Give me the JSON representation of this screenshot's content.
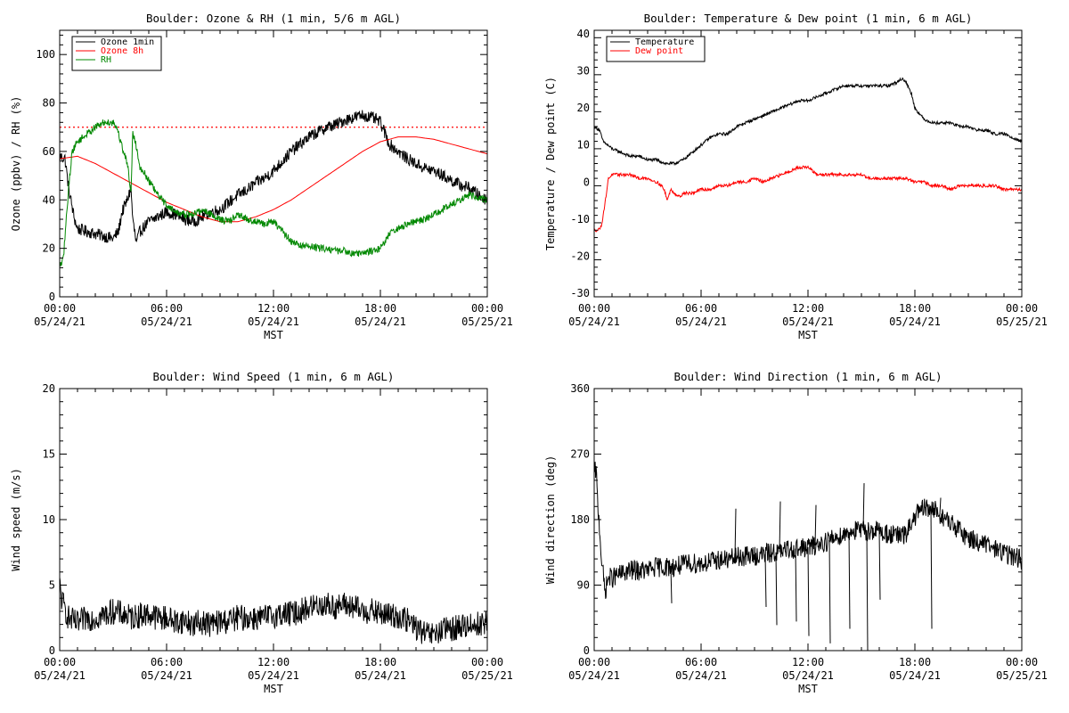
{
  "x_axis": {
    "tick_times": [
      "00:00",
      "06:00",
      "12:00",
      "18:00",
      "00:00"
    ],
    "tick_dates": [
      "05/24/21",
      "05/24/21",
      "05/24/21",
      "05/24/21",
      "05/25/21"
    ],
    "label": "MST"
  },
  "chart_data": [
    {
      "type": "line",
      "title": "Boulder: Ozone & RH (1 min, 5/6 m AGL)",
      "xlabel": "MST",
      "ylabel": "Ozone (ppbv) / RH (%)",
      "xlim": [
        0,
        24
      ],
      "ylim": [
        0,
        110
      ],
      "yticks": [
        0,
        20,
        40,
        60,
        80,
        100
      ],
      "legend_position": "top-left",
      "reference_line": {
        "value": 70,
        "style": "dotted",
        "color": "#ff0000"
      },
      "series": [
        {
          "name": "Ozone 1min",
          "color": "#000000",
          "noise": 2.5,
          "x": [
            0,
            0.3,
            0.5,
            0.8,
            1.0,
            1.5,
            2.0,
            2.5,
            3.0,
            3.3,
            3.5,
            3.8,
            4.0,
            4.1,
            4.3,
            4.5,
            5.0,
            5.5,
            6.0,
            6.5,
            7.0,
            7.5,
            8.0,
            8.5,
            9.0,
            9.5,
            10.0,
            10.5,
            11.0,
            11.5,
            12.0,
            12.5,
            13.0,
            13.5,
            14.0,
            14.5,
            15.0,
            15.5,
            16.0,
            16.5,
            17.0,
            17.5,
            17.8,
            18.0,
            18.5,
            19.0,
            19.5,
            20.0,
            20.5,
            21.0,
            21.5,
            22.0,
            22.5,
            23.0,
            23.5,
            24.0
          ],
          "y": [
            58,
            57,
            45,
            33,
            28,
            27,
            26,
            25,
            24,
            27,
            35,
            40,
            45,
            32,
            22,
            27,
            31,
            33,
            35,
            34,
            32,
            31,
            33,
            35,
            36,
            39,
            42,
            44,
            47,
            49,
            52,
            56,
            60,
            63,
            66,
            68,
            70,
            71,
            73,
            74,
            75,
            74,
            73,
            72,
            63,
            60,
            57,
            55,
            53,
            52,
            50,
            48,
            46,
            45,
            42,
            40
          ]
        },
        {
          "name": "Ozone 8h",
          "color": "#ff0000",
          "noise": 0,
          "x": [
            0,
            1,
            2,
            3,
            4,
            5,
            6,
            7,
            8,
            9,
            10,
            11,
            12,
            13,
            14,
            15,
            16,
            17,
            18,
            19,
            20,
            21,
            22,
            23,
            24
          ],
          "y": [
            57,
            58,
            55,
            51,
            47,
            43,
            39,
            36,
            33,
            31,
            31,
            33,
            36,
            40,
            45,
            50,
            55,
            60,
            64,
            66,
            66,
            65,
            63,
            61,
            59
          ]
        },
        {
          "name": "RH",
          "color": "#008800",
          "noise": 1.5,
          "x": [
            0,
            0.2,
            0.3,
            0.5,
            0.7,
            1.0,
            1.5,
            2.0,
            2.5,
            3.0,
            3.2,
            3.5,
            3.8,
            4.0,
            4.1,
            4.3,
            4.5,
            5.0,
            5.5,
            6.0,
            6.5,
            7.0,
            7.5,
            8.0,
            8.5,
            9.0,
            9.5,
            10.0,
            10.5,
            11.0,
            11.5,
            12.0,
            12.5,
            13.0,
            13.5,
            14.0,
            14.5,
            15.0,
            15.5,
            16.0,
            16.5,
            17.0,
            17.5,
            18.0,
            18.5,
            19.0,
            19.5,
            20.0,
            20.5,
            21.0,
            21.5,
            22.0,
            22.5,
            23.0,
            23.5,
            24.0
          ],
          "y": [
            13,
            15,
            25,
            45,
            60,
            64,
            67,
            70,
            72,
            72,
            70,
            62,
            55,
            43,
            68,
            62,
            54,
            48,
            42,
            38,
            35,
            34,
            34,
            36,
            34,
            32,
            31,
            34,
            32,
            31,
            30,
            31,
            27,
            23,
            21,
            21,
            20,
            20,
            19,
            19,
            18,
            18,
            19,
            20,
            26,
            28,
            30,
            31,
            32,
            34,
            36,
            38,
            40,
            42,
            41,
            40
          ]
        }
      ]
    },
    {
      "type": "line",
      "title": "Boulder: Temperature & Dew point (1 min, 6 m AGL)",
      "xlabel": "MST",
      "ylabel": "Temperature / Dew point (C)",
      "xlim": [
        0,
        24
      ],
      "ylim": [
        -31,
        41
      ],
      "yticks": [
        -30,
        -20,
        -10,
        0,
        10,
        20,
        30,
        40
      ],
      "legend_position": "top-left",
      "series": [
        {
          "name": "Temperature",
          "color": "#000000",
          "noise": 0.4,
          "x": [
            0,
            0.3,
            0.5,
            1.0,
            1.5,
            2.0,
            2.5,
            3.0,
            3.5,
            4.0,
            4.5,
            5.0,
            5.5,
            6.0,
            6.5,
            7.0,
            7.5,
            8.0,
            8.5,
            9.0,
            9.5,
            10.0,
            10.5,
            11.0,
            11.5,
            12.0,
            12.5,
            13.0,
            13.5,
            14.0,
            14.5,
            15.0,
            15.5,
            16.0,
            16.5,
            17.0,
            17.3,
            17.5,
            17.8,
            18.0,
            18.5,
            19.0,
            19.5,
            20.0,
            20.5,
            21.0,
            21.5,
            22.0,
            22.5,
            23.0,
            23.5,
            24.0
          ],
          "y": [
            15,
            14,
            11,
            9,
            8,
            7,
            7,
            6,
            6,
            5,
            5,
            6,
            8,
            10,
            12,
            13,
            13,
            15,
            16,
            17,
            18,
            19,
            20,
            21,
            22,
            22,
            23,
            24,
            25,
            26,
            26,
            26,
            26,
            26,
            26,
            27,
            28,
            27,
            24,
            20,
            17,
            16,
            16,
            16,
            15,
            15,
            14,
            14,
            13,
            13,
            12,
            11
          ]
        },
        {
          "name": "Dew point",
          "color": "#ff0000",
          "noise": 0.4,
          "x": [
            0,
            0.2,
            0.4,
            0.6,
            0.8,
            1.0,
            1.5,
            2.0,
            2.5,
            3.0,
            3.5,
            3.8,
            4.0,
            4.1,
            4.3,
            4.5,
            4.8,
            5.0,
            5.5,
            6.0,
            6.5,
            7.0,
            7.5,
            8.0,
            8.5,
            9.0,
            9.5,
            10.0,
            10.5,
            11.0,
            11.5,
            12.0,
            12.5,
            13.0,
            13.5,
            14.0,
            14.5,
            15.0,
            15.5,
            16.0,
            16.5,
            17.0,
            17.5,
            18.0,
            18.5,
            19.0,
            19.5,
            20.0,
            20.5,
            21.0,
            21.5,
            22.0,
            22.5,
            23.0,
            23.5,
            24.0
          ],
          "y": [
            -13,
            -13,
            -12,
            -6,
            1,
            2,
            2,
            2,
            1,
            1,
            0,
            -1,
            -3,
            -5,
            -2,
            -3,
            -4,
            -3,
            -3,
            -2,
            -2,
            -1,
            -1,
            0,
            0,
            1,
            0,
            1,
            2,
            3,
            4,
            4,
            2,
            2,
            2,
            2,
            2,
            2,
            1,
            1,
            1,
            1,
            1,
            0,
            0,
            -1,
            -1,
            -2,
            -1,
            -1,
            -1,
            -1,
            -1,
            -2,
            -2,
            -2
          ]
        }
      ]
    },
    {
      "type": "line",
      "title": "Boulder: Wind Speed (1 min, 6 m AGL)",
      "xlabel": "MST",
      "ylabel": "Wind speed (m/s)",
      "xlim": [
        0,
        24
      ],
      "ylim": [
        0,
        20
      ],
      "yticks": [
        0,
        5,
        10,
        15,
        20
      ],
      "series": [
        {
          "name": "",
          "color": "#000000",
          "noise": 1.0,
          "x": [
            0,
            0.1,
            0.2,
            0.5,
            1.0,
            1.5,
            2.0,
            2.5,
            3.0,
            3.5,
            4.0,
            4.5,
            5.0,
            5.5,
            6.0,
            6.5,
            7.0,
            7.5,
            8.0,
            8.5,
            9.0,
            9.5,
            10.0,
            10.5,
            11.0,
            11.5,
            12.0,
            12.5,
            13.0,
            13.5,
            14.0,
            14.5,
            15.0,
            15.5,
            16.0,
            16.5,
            17.0,
            17.5,
            18.0,
            18.5,
            19.0,
            19.5,
            20.0,
            20.5,
            21.0,
            21.5,
            22.0,
            22.5,
            23.0,
            23.5,
            24.0
          ],
          "y": [
            5.0,
            4.0,
            3.5,
            2.5,
            2.0,
            2.5,
            2.5,
            2.7,
            3.0,
            2.8,
            2.5,
            2.7,
            2.8,
            2.5,
            2.5,
            2.2,
            2.3,
            2.0,
            2.2,
            2.0,
            2.2,
            2.3,
            2.5,
            2.5,
            2.5,
            2.5,
            2.7,
            2.8,
            2.8,
            3.0,
            3.3,
            3.5,
            3.5,
            3.3,
            3.5,
            3.3,
            3.0,
            3.0,
            2.8,
            2.7,
            2.6,
            2.3,
            1.8,
            1.2,
            1.2,
            1.5,
            1.7,
            1.8,
            2.0,
            2.0,
            2.2
          ]
        }
      ]
    },
    {
      "type": "line",
      "title": "Boulder: Wind Direction (1 min, 6 m AGL)",
      "xlabel": "MST",
      "ylabel": "Wind direction (deg)",
      "xlim": [
        0,
        24
      ],
      "ylim": [
        0,
        360
      ],
      "yticks": [
        0,
        90,
        180,
        270,
        360
      ],
      "series": [
        {
          "name": "",
          "color": "#000000",
          "noise": 14,
          "x": [
            0,
            0.1,
            0.2,
            0.3,
            0.4,
            0.6,
            0.8,
            1.0,
            1.5,
            2.0,
            2.5,
            3.0,
            3.5,
            4.0,
            4.5,
            5.0,
            5.5,
            6.0,
            6.5,
            7.0,
            7.5,
            8.0,
            8.5,
            9.0,
            9.5,
            10.0,
            10.5,
            11.0,
            11.5,
            12.0,
            12.5,
            13.0,
            13.5,
            14.0,
            14.5,
            15.0,
            15.5,
            16.0,
            16.5,
            17.0,
            17.5,
            18.0,
            18.5,
            19.0,
            19.5,
            20.0,
            20.5,
            21.0,
            21.5,
            22.0,
            22.5,
            23.0,
            23.5,
            24.0
          ],
          "y": [
            240,
            250,
            200,
            170,
            130,
            80,
            100,
            100,
            105,
            110,
            110,
            110,
            115,
            115,
            115,
            118,
            120,
            120,
            122,
            125,
            125,
            128,
            130,
            130,
            132,
            135,
            135,
            140,
            140,
            142,
            145,
            150,
            155,
            160,
            165,
            165,
            165,
            165,
            160,
            158,
            158,
            185,
            195,
            195,
            185,
            175,
            165,
            155,
            150,
            145,
            140,
            135,
            130,
            125
          ]
        }
      ],
      "spikes": [
        {
          "x": 4.3,
          "y": 65
        },
        {
          "x": 7.9,
          "y": 195
        },
        {
          "x": 9.6,
          "y": 60
        },
        {
          "x": 10.2,
          "y": 35
        },
        {
          "x": 10.4,
          "y": 205
        },
        {
          "x": 11.3,
          "y": 40
        },
        {
          "x": 12.0,
          "y": 20
        },
        {
          "x": 12.4,
          "y": 200
        },
        {
          "x": 13.2,
          "y": 10
        },
        {
          "x": 14.3,
          "y": 30
        },
        {
          "x": 15.1,
          "y": 230
        },
        {
          "x": 15.3,
          "y": 0
        },
        {
          "x": 16.0,
          "y": 70
        },
        {
          "x": 17.6,
          "y": 180
        },
        {
          "x": 18.9,
          "y": 30
        },
        {
          "x": 19.4,
          "y": 210
        }
      ]
    }
  ]
}
